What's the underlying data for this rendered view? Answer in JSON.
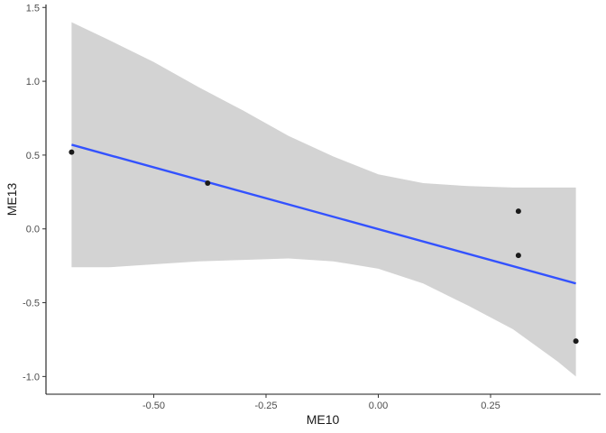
{
  "chart_data": {
    "type": "scatter",
    "xlabel": "ME10",
    "ylabel": "ME13",
    "xlim": [
      -0.74,
      0.495
    ],
    "ylim": [
      -1.12,
      1.52
    ],
    "x_ticks": [
      -0.5,
      -0.25,
      0.0,
      0.25
    ],
    "x_tick_labels": [
      "-0.50",
      "-0.25",
      "0.00",
      "0.25"
    ],
    "y_ticks": [
      -1.0,
      -0.5,
      0.0,
      0.5,
      1.0,
      1.5
    ],
    "y_tick_labels": [
      "-1.0",
      "-0.5",
      "0.0",
      "0.5",
      "1.0",
      "1.5"
    ],
    "grid": false,
    "points": [
      {
        "x": -0.683,
        "y": 0.52
      },
      {
        "x": -0.38,
        "y": 0.31
      },
      {
        "x": 0.312,
        "y": 0.12
      },
      {
        "x": 0.312,
        "y": -0.18
      },
      {
        "x": 0.44,
        "y": -0.76
      }
    ],
    "fit_line": {
      "x_start": -0.683,
      "y_start": 0.57,
      "x_end": 0.44,
      "y_end": -0.37
    },
    "confidence_band": [
      {
        "x": -0.683,
        "lower": -0.26,
        "upper": 1.4
      },
      {
        "x": -0.6,
        "lower": -0.26,
        "upper": 1.28
      },
      {
        "x": -0.5,
        "lower": -0.24,
        "upper": 1.13
      },
      {
        "x": -0.4,
        "lower": -0.22,
        "upper": 0.96
      },
      {
        "x": -0.3,
        "lower": -0.21,
        "upper": 0.8
      },
      {
        "x": -0.2,
        "lower": -0.2,
        "upper": 0.63
      },
      {
        "x": -0.1,
        "lower": -0.22,
        "upper": 0.49
      },
      {
        "x": 0.0,
        "lower": -0.27,
        "upper": 0.37
      },
      {
        "x": 0.1,
        "lower": -0.37,
        "upper": 0.31
      },
      {
        "x": 0.2,
        "lower": -0.52,
        "upper": 0.29
      },
      {
        "x": 0.3,
        "lower": -0.68,
        "upper": 0.28
      },
      {
        "x": 0.4,
        "lower": -0.9,
        "upper": 0.28
      },
      {
        "x": 0.44,
        "lower": -1.0,
        "upper": 0.28
      }
    ],
    "colors": {
      "points": "#1a1a1a",
      "fit_line": "#3352ff",
      "band": "#d3d3d3",
      "axis": "#1a1a1a"
    }
  }
}
